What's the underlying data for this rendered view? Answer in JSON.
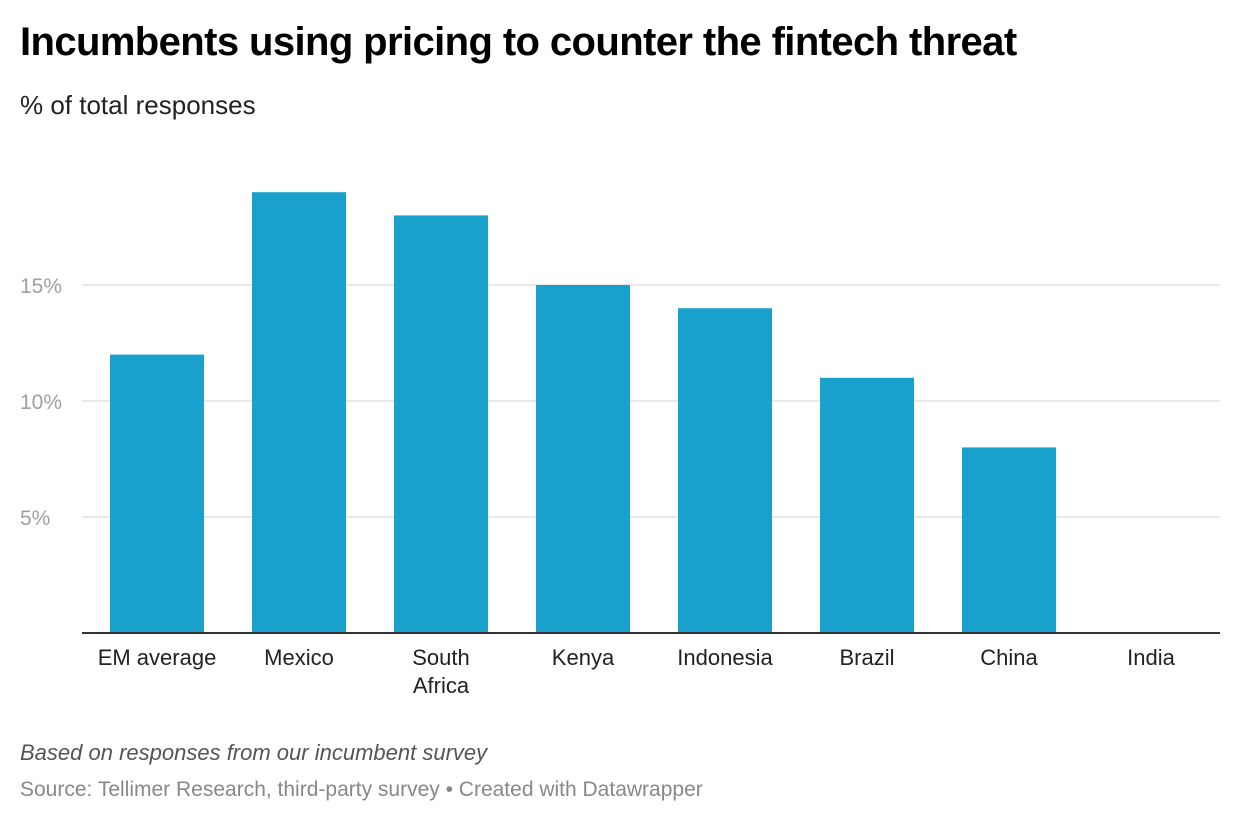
{
  "title": "Incumbents using pricing to counter the fintech threat",
  "subtitle": "% of total responses",
  "note": "Based on responses from our incumbent survey",
  "source": "Source: Tellimer Research, third-party survey • Created with Datawrapper",
  "colors": {
    "bar": "#1aa0cc",
    "grid": "#e1e1e1",
    "axis": "#333333",
    "tick_label": "#a0a0a0"
  },
  "chart_data": {
    "type": "bar",
    "categories": [
      [
        "EM average"
      ],
      [
        "Mexico"
      ],
      [
        "South",
        "Africa"
      ],
      [
        "Kenya"
      ],
      [
        "Indonesia"
      ],
      [
        "Brazil"
      ],
      [
        "China"
      ],
      [
        "India"
      ]
    ],
    "values": [
      12,
      19,
      18,
      15,
      14,
      11,
      8,
      0
    ],
    "yticks": [
      5,
      10,
      15
    ],
    "ytick_labels": [
      "5%",
      "10%",
      "15%"
    ],
    "ylim": [
      0,
      20
    ],
    "grid": true,
    "xlabel": "",
    "ylabel": ""
  }
}
